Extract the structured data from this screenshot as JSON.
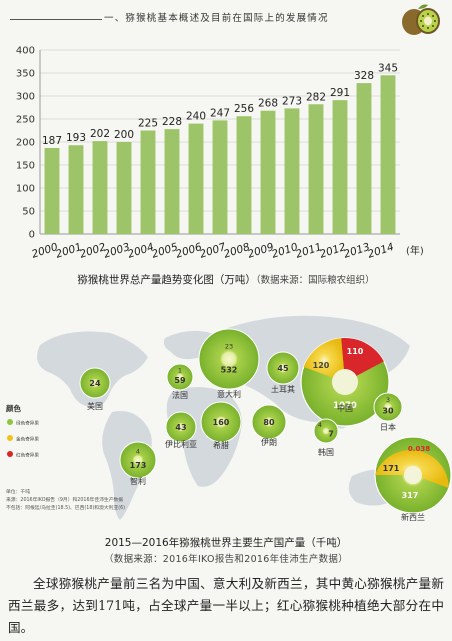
{
  "header": {
    "title": "一、猕猴桃基本概述及目前在国际上的发展情况"
  },
  "chart_data": {
    "type": "bar",
    "categories": [
      "2000",
      "2001",
      "2002",
      "2003",
      "2004",
      "2005",
      "2006",
      "2007",
      "2008",
      "2009",
      "2010",
      "2011",
      "2012",
      "2013",
      "2014"
    ],
    "values": [
      187,
      193,
      202,
      200,
      225,
      228,
      240,
      247,
      256,
      268,
      273,
      282,
      291,
      328,
      345
    ],
    "yticks": [
      0,
      50,
      100,
      150,
      200,
      250,
      300,
      350,
      400
    ],
    "ylim": [
      0,
      400
    ],
    "xunit": "(年)",
    "color": "#9ec46a",
    "grid": "horizontal"
  },
  "chart_caption": {
    "main": "猕猴桃世界总产量趋势变化图（万吨）",
    "source": "（数据来源：国际粮农组织）"
  },
  "map": {
    "legend_title": "颜色",
    "legend_items": [
      {
        "label": "绿色奇异果",
        "color": "#8cc63f"
      },
      {
        "label": "金色奇异果",
        "color": "#f2c21b"
      },
      {
        "label": "红色奇异果",
        "color": "#d8262a"
      }
    ],
    "notes": [
      "单位：千吨",
      "来源：2016年IKO报告（9月）和2016年佳沛生产数据",
      "不包括：阿根廷/乌拉圭(18.5)、巴西(18)和澳大利亚(6)"
    ],
    "countries": [
      {
        "name": "美国",
        "values": [
          "24"
        ]
      },
      {
        "name": "智利",
        "values": [
          "4",
          "173"
        ]
      },
      {
        "name": "法国",
        "values": [
          "1",
          "59"
        ]
      },
      {
        "name": "伊比利亚",
        "values": [
          "43"
        ]
      },
      {
        "name": "意大利",
        "values": [
          "23",
          "532"
        ]
      },
      {
        "name": "希腊",
        "values": [
          "160"
        ]
      },
      {
        "name": "土耳其",
        "values": [
          "45"
        ]
      },
      {
        "name": "伊朗",
        "values": [
          "80"
        ]
      },
      {
        "name": "中国",
        "values": [
          "110",
          "120",
          "1070"
        ]
      },
      {
        "name": "韩国",
        "values": [
          "4",
          "7"
        ]
      },
      {
        "name": "日本",
        "values": [
          "3",
          "30"
        ]
      },
      {
        "name": "新西兰",
        "values": [
          "0.038",
          "171",
          "317"
        ]
      }
    ]
  },
  "map_caption": {
    "main": "2015—2016年猕猴桃世界主要生产国产量（千吨）",
    "source": "（数据来源：2016年IKO报告和2016年佳沛生产数据）"
  },
  "paragraph": "全球猕猴桃产量前三名为中国、意大利及新西兰，其中黄心猕猴桃产量新西兰最多，达到171吨，占全球产量一半以上；红心猕猴桃种植绝大部分在中国。"
}
